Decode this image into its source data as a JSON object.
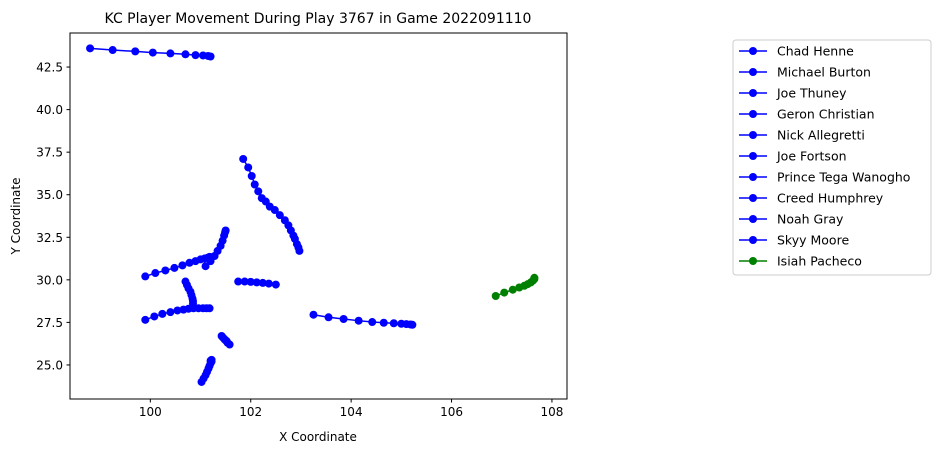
{
  "chart_data": {
    "type": "line",
    "title": "KC Player Movement During Play 3767 in Game 2022091110",
    "xlabel": "X Coordinate",
    "ylabel": "Y Coordinate",
    "xlim": [
      98.4,
      108.3
    ],
    "ylim": [
      23.0,
      44.5
    ],
    "xticks": [
      100,
      102,
      104,
      106,
      108
    ],
    "yticks": [
      25.0,
      27.5,
      30.0,
      32.5,
      35.0,
      37.5,
      40.0,
      42.5
    ],
    "xtick_labels": [
      "100",
      "102",
      "104",
      "106",
      "108"
    ],
    "ytick_labels": [
      "25.0",
      "27.5",
      "30.0",
      "32.5",
      "35.0",
      "37.5",
      "40.0",
      "42.5"
    ],
    "grid": false,
    "legend_position": "outside-right",
    "series": [
      {
        "name": "Chad Henne",
        "color": "#0000ff",
        "x": [
          98.8,
          99.25,
          99.7,
          100.05,
          100.4,
          100.7,
          100.9,
          101.05,
          101.15,
          101.2
        ],
        "y": [
          43.6,
          43.5,
          43.42,
          43.35,
          43.3,
          43.25,
          43.2,
          43.18,
          43.15,
          43.12
        ]
      },
      {
        "name": "Michael Burton",
        "color": "#0000ff",
        "x": [
          101.85,
          101.95,
          102.02,
          102.08,
          102.15,
          102.22,
          102.3,
          102.38,
          102.48,
          102.58,
          102.68,
          102.75,
          102.8,
          102.85,
          102.88,
          102.92,
          102.95,
          102.97
        ],
        "y": [
          37.1,
          36.6,
          36.1,
          35.6,
          35.2,
          34.8,
          34.6,
          34.3,
          34.1,
          33.8,
          33.5,
          33.2,
          32.9,
          32.6,
          32.4,
          32.1,
          31.9,
          31.7
        ]
      },
      {
        "name": "Joe Thuney",
        "color": "#0000ff",
        "x": [
          99.9,
          100.1,
          100.3,
          100.48,
          100.64,
          100.78,
          100.9,
          101.0,
          101.08,
          101.14,
          101.18
        ],
        "y": [
          30.2,
          30.4,
          30.55,
          30.7,
          30.85,
          31.0,
          31.1,
          31.2,
          31.25,
          31.3,
          31.35
        ]
      },
      {
        "name": "Geron Christian",
        "color": "#0000ff",
        "x": [
          101.1,
          101.2,
          101.28,
          101.34,
          101.4,
          101.44,
          101.47,
          101.49,
          101.5
        ],
        "y": [
          30.8,
          31.1,
          31.4,
          31.7,
          32.0,
          32.3,
          32.6,
          32.8,
          32.9
        ]
      },
      {
        "name": "Nick Allegretti",
        "color": "#0000ff",
        "x": [
          101.75,
          101.88,
          102.0,
          102.12,
          102.24,
          102.36,
          102.5
        ],
        "y": [
          29.9,
          29.9,
          29.88,
          29.85,
          29.82,
          29.78,
          29.72
        ]
      },
      {
        "name": "Joe Fortson",
        "color": "#0000ff",
        "x": [
          99.9,
          100.08,
          100.24,
          100.4,
          100.54,
          100.66,
          100.76,
          100.86,
          100.96,
          101.05,
          101.12,
          101.18
        ],
        "y": [
          27.65,
          27.85,
          28.0,
          28.1,
          28.2,
          28.25,
          28.3,
          28.33,
          28.33,
          28.33,
          28.33,
          28.33
        ]
      },
      {
        "name": "Prince Tega Wanogho",
        "color": "#0000ff",
        "x": [
          100.7,
          100.73,
          100.76,
          100.8,
          100.82,
          100.84,
          100.85,
          100.85
        ],
        "y": [
          29.9,
          29.7,
          29.5,
          29.3,
          29.1,
          28.9,
          28.75,
          28.6
        ]
      },
      {
        "name": "Creed Humphrey",
        "color": "#0000ff",
        "x": [
          101.42,
          101.45,
          101.48,
          101.5,
          101.52,
          101.54,
          101.58
        ],
        "y": [
          26.7,
          26.6,
          26.5,
          26.45,
          26.4,
          26.3,
          26.2
        ]
      },
      {
        "name": "Noah Gray",
        "color": "#0000ff",
        "x": [
          101.02,
          101.06,
          101.1,
          101.13,
          101.16,
          101.18,
          101.2,
          101.22,
          101.22,
          101.2
        ],
        "y": [
          24.0,
          24.2,
          24.4,
          24.6,
          24.8,
          24.95,
          25.1,
          25.2,
          25.3,
          25.25
        ]
      },
      {
        "name": "Skyy Moore",
        "color": "#0000ff",
        "x": [
          103.25,
          103.55,
          103.85,
          104.15,
          104.42,
          104.65,
          104.85,
          105.0,
          105.1,
          105.18,
          105.22
        ],
        "y": [
          27.95,
          27.8,
          27.7,
          27.6,
          27.52,
          27.48,
          27.45,
          27.42,
          27.4,
          27.38,
          27.36
        ]
      },
      {
        "name": "Isiah Pacheco",
        "color": "#008000",
        "x": [
          106.88,
          107.05,
          107.22,
          107.35,
          107.45,
          107.52,
          107.58,
          107.62,
          107.65,
          107.65
        ],
        "y": [
          29.05,
          29.25,
          29.42,
          29.55,
          29.65,
          29.75,
          29.85,
          29.95,
          30.05,
          30.12
        ]
      }
    ]
  }
}
